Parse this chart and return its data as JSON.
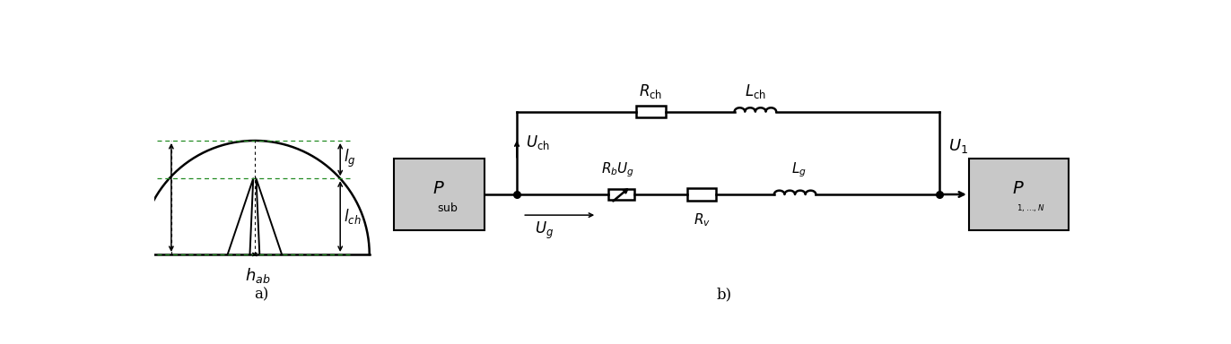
{
  "bg_color": "#ffffff",
  "green_color": "#228B22",
  "black_color": "#000000",
  "gray_color": "#c8c8c8",
  "fig_width": 13.72,
  "fig_height": 3.84,
  "label_a": "a)",
  "label_b": "b)"
}
